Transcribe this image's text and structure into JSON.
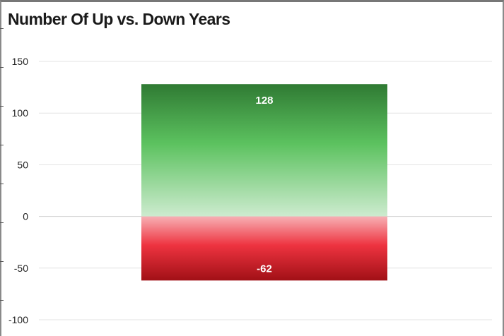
{
  "chart_data": {
    "type": "bar",
    "title": "Number Of Up vs. Down Years",
    "xlabel": "",
    "ylabel": "",
    "ylim": [
      -100,
      150
    ],
    "yticks": [
      150,
      100,
      50,
      0,
      -50,
      -100
    ],
    "grid": true,
    "legend": "none",
    "series": [
      {
        "values": [
          128
        ],
        "color_top": "#2f7a33",
        "color_mid": "#5cc25f",
        "color_bottom": "#cdebcf"
      },
      {
        "values": [
          -62
        ],
        "color_top": "#f7b0b4",
        "color_mid": "#ee3340",
        "color_bottom": "#a11016"
      }
    ],
    "data_labels": [
      "128",
      "-62"
    ]
  }
}
